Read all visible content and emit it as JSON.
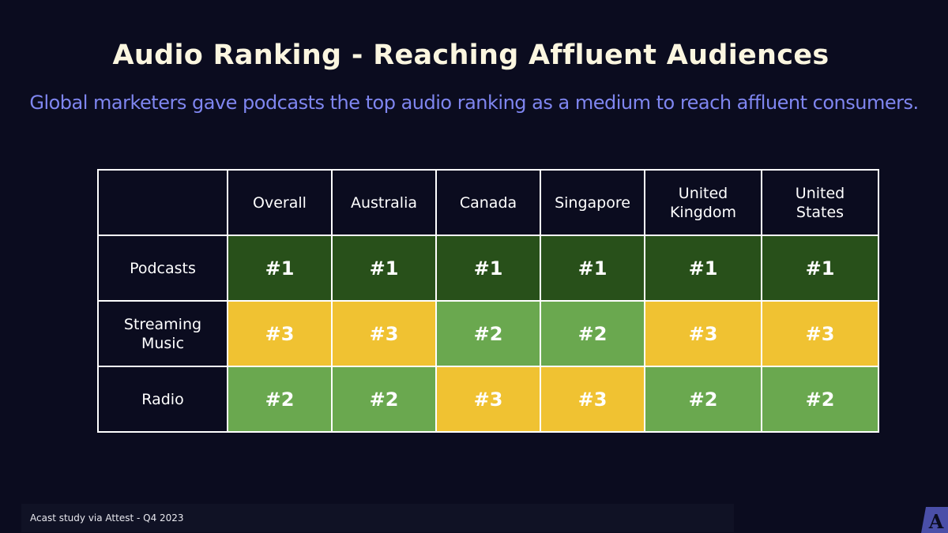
{
  "title": "Audio Ranking - Reaching Affluent Audiences",
  "subtitle": "Global marketers gave podcasts the top audio ranking as a medium to reach affluent consumers.",
  "footer": "Acast study via Attest - Q4 2023",
  "colors": {
    "rank_1": "#28501a",
    "rank_2": "#6aa84f",
    "rank_3": "#f0c232",
    "background": "#0b0c1f"
  },
  "chart_data": {
    "type": "table",
    "title": "Audio Ranking - Reaching Affluent Audiences",
    "columns": [
      "Overall",
      "Australia",
      "Canada",
      "Singapore",
      "United Kingdom",
      "United States"
    ],
    "rows": [
      {
        "label": "Podcasts",
        "values": [
          1,
          1,
          1,
          1,
          1,
          1
        ]
      },
      {
        "label": "Streaming Music",
        "values": [
          3,
          3,
          2,
          2,
          3,
          3
        ]
      },
      {
        "label": "Radio",
        "values": [
          2,
          2,
          3,
          3,
          2,
          2
        ]
      }
    ]
  }
}
